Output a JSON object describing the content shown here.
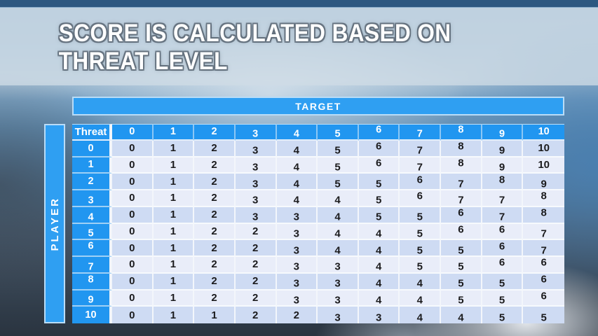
{
  "slide": {
    "title_line1": "SCORE IS CALCULATED BASED ON",
    "title_line2": "THREAT LEVEL"
  },
  "matrix": {
    "target_label": "TARGET",
    "player_label": "PLAYER"
  },
  "chart_data": {
    "type": "table",
    "title": "Score matrix: player threat level (rows) vs target threat level (columns)",
    "corner_label": "Threat",
    "col_headers": [
      "0",
      "1",
      "2",
      "3",
      "4",
      "5",
      "6",
      "7",
      "8",
      "9",
      "10"
    ],
    "row_headers": [
      "0",
      "1",
      "2",
      "3",
      "4",
      "5",
      "6",
      "7",
      "8",
      "9",
      "10"
    ],
    "rows": [
      [
        0,
        1,
        2,
        3,
        4,
        5,
        6,
        7,
        8,
        9,
        10
      ],
      [
        0,
        1,
        2,
        3,
        4,
        5,
        6,
        7,
        8,
        9,
        10
      ],
      [
        0,
        1,
        2,
        3,
        4,
        5,
        5,
        6,
        7,
        8,
        9
      ],
      [
        0,
        1,
        2,
        3,
        4,
        4,
        5,
        6,
        7,
        7,
        8
      ],
      [
        0,
        1,
        2,
        3,
        3,
        4,
        5,
        5,
        6,
        7,
        8
      ],
      [
        0,
        1,
        2,
        2,
        3,
        4,
        4,
        5,
        6,
        6,
        7
      ],
      [
        0,
        1,
        2,
        2,
        3,
        4,
        4,
        5,
        5,
        6,
        7
      ],
      [
        0,
        1,
        2,
        2,
        3,
        3,
        4,
        5,
        5,
        6,
        6
      ],
      [
        0,
        1,
        2,
        2,
        3,
        3,
        4,
        4,
        5,
        5,
        6
      ],
      [
        0,
        1,
        2,
        2,
        3,
        3,
        4,
        4,
        5,
        5,
        6
      ],
      [
        0,
        1,
        1,
        2,
        2,
        3,
        3,
        4,
        4,
        5,
        5
      ]
    ]
  },
  "colors": {
    "accent_blue": "#2f9ff2",
    "header_cell_blue": "#2196f0",
    "top_bar_navy": "#2d5880",
    "row_even": "#cedbf3",
    "row_odd": "#e9edf9",
    "cell_text": "#1b1b1d",
    "header_text": "#ffffff"
  }
}
